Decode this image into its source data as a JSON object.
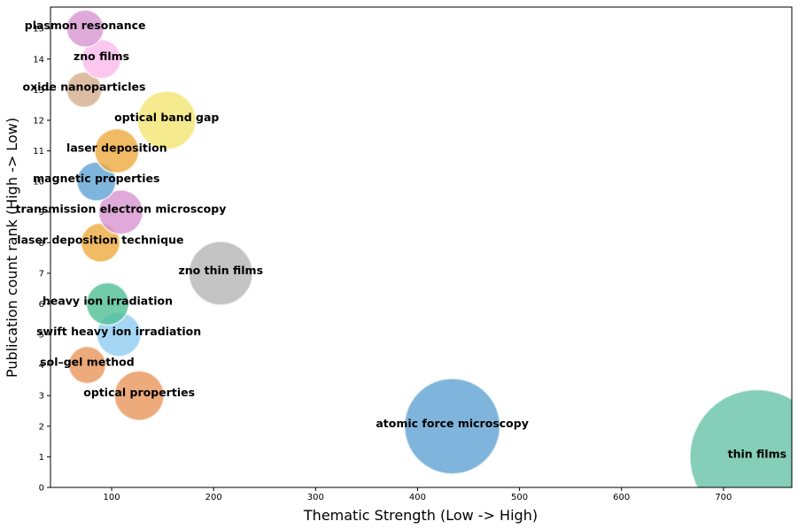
{
  "chart_data": {
    "type": "scatter",
    "xlabel": "Thematic Strength (Low -> High)",
    "ylabel": "Publication count rank (High -> Low)",
    "xlim": [
      40,
      767
    ],
    "ylim": [
      0,
      15.7
    ],
    "xticks": [
      100,
      200,
      300,
      400,
      500,
      600,
      700
    ],
    "yticks": [
      0,
      1,
      2,
      3,
      4,
      5,
      6,
      7,
      8,
      9,
      10,
      11,
      12,
      13,
      14,
      15
    ],
    "grid": false,
    "points": [
      {
        "label": "thin films",
        "x": 733,
        "y": 1,
        "size": 76,
        "color": "#66c2a5"
      },
      {
        "label": "atomic force microscopy",
        "x": 434,
        "y": 2,
        "size": 54,
        "color": "#5fa2d3"
      },
      {
        "label": "optical properties",
        "x": 127,
        "y": 3,
        "size": 28,
        "color": "#e8955a"
      },
      {
        "label": "sol–gel method",
        "x": 76,
        "y": 4,
        "size": 21,
        "color": "#e8955a"
      },
      {
        "label": "swift heavy ion irradiation",
        "x": 107,
        "y": 5,
        "size": 25,
        "color": "#8fcdf3"
      },
      {
        "label": "heavy ion irradiation",
        "x": 96,
        "y": 6,
        "size": 24,
        "color": "#4fbf95"
      },
      {
        "label": "zno thin films",
        "x": 207,
        "y": 7,
        "size": 36,
        "color": "#b5b5b5"
      },
      {
        "label": "laser deposition technique",
        "x": 89,
        "y": 8,
        "size": 22,
        "color": "#eeaa3e"
      },
      {
        "label": "transmission electron microscopy",
        "x": 109,
        "y": 9,
        "size": 25,
        "color": "#d794cf"
      },
      {
        "label": "magnetic properties",
        "x": 85,
        "y": 10,
        "size": 22,
        "color": "#5fa2d3"
      },
      {
        "label": "laser deposition",
        "x": 105,
        "y": 11,
        "size": 25,
        "color": "#eeaa3e"
      },
      {
        "label": "optical band gap",
        "x": 154,
        "y": 12,
        "size": 33,
        "color": "#f3e571"
      },
      {
        "label": "oxide nanoparticles",
        "x": 73,
        "y": 13,
        "size": 20,
        "color": "#d4ae8f"
      },
      {
        "label": "zno films",
        "x": 90,
        "y": 14,
        "size": 22,
        "color": "#fbb9ea"
      },
      {
        "label": "plasmon resonance",
        "x": 74,
        "y": 15,
        "size": 21,
        "color": "#d794cf"
      }
    ]
  }
}
